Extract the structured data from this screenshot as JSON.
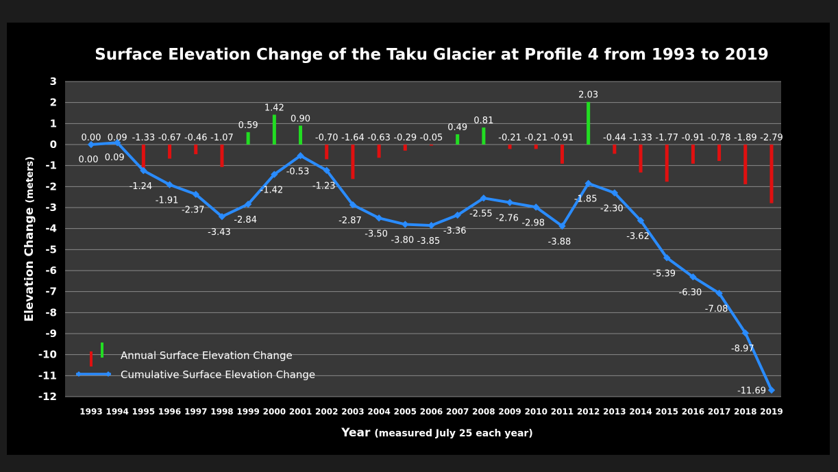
{
  "chart_data": {
    "type": "bar+line",
    "title": "Surface Elevation Change of the Taku Glacier at Profile 4 from 1993 to 2019",
    "xlabel": "Year",
    "xlabel_note": "(measured July 25 each year)",
    "ylabel": "Elevation Change",
    "ylabel_unit": "(meters)",
    "ylim": [
      -12,
      3
    ],
    "yticks": [
      3,
      2,
      1,
      0,
      -1,
      -2,
      -3,
      -4,
      -5,
      -6,
      -7,
      -8,
      -9,
      -10,
      -11,
      -12
    ],
    "grid": true,
    "legend_position": "bottom-left",
    "categories": [
      "1993",
      "1994",
      "1995",
      "1996",
      "1997",
      "1998",
      "1999",
      "2000",
      "2001",
      "2002",
      "2003",
      "2004",
      "2005",
      "2006",
      "2007",
      "2008",
      "2009",
      "2010",
      "2011",
      "2012",
      "2013",
      "2014",
      "2015",
      "2016",
      "2017",
      "2018",
      "2019"
    ],
    "series": [
      {
        "name": "Annual Surface Elevation Change",
        "type": "bar",
        "positive_color": "#22dd22",
        "negative_color": "#e01010",
        "values": [
          0.0,
          0.09,
          -1.33,
          -0.67,
          -0.46,
          -1.07,
          0.59,
          1.42,
          0.9,
          -0.7,
          -1.64,
          -0.63,
          -0.29,
          -0.05,
          0.49,
          0.81,
          -0.21,
          -0.21,
          -0.91,
          2.03,
          -0.44,
          -1.33,
          -1.77,
          -0.91,
          -0.78,
          -1.89,
          -2.79
        ],
        "labels": [
          "0.00",
          "0.09",
          "-1.33",
          "-0.67",
          "-0.46",
          "-1.07",
          "0.59",
          "1.42",
          "0.90",
          "-0.70",
          "-1.64",
          "-0.63",
          "-0.29",
          "-0.05",
          "0.49",
          "0.81",
          "-0.21",
          "-0.21",
          "-0.91",
          "2.03",
          "-0.44",
          "-1.33",
          "-1.77",
          "-0.91",
          "-0.78",
          "-1.89",
          "-2.79"
        ]
      },
      {
        "name": "Cumulative Surface Elevation Change",
        "type": "line",
        "color": "#2a8cff",
        "values": [
          0.0,
          0.09,
          -1.24,
          -1.91,
          -2.37,
          -3.43,
          -2.84,
          -1.42,
          -0.53,
          -1.23,
          -2.87,
          -3.5,
          -3.8,
          -3.85,
          -3.36,
          -2.55,
          -2.76,
          -2.98,
          -3.88,
          -1.85,
          -2.3,
          -3.62,
          -5.39,
          -6.3,
          -7.08,
          -8.97,
          -11.69
        ],
        "labels": [
          "0.00",
          "0.09",
          "-1.24",
          "-1.91",
          "-2.37",
          "-3.43",
          "-2.84",
          "-1.42",
          "-0.53",
          "-1.23",
          "-2.87",
          "-3.50",
          "-3.80",
          "-3.85",
          "-3.36",
          "-2.55",
          "-2.76",
          "-2.98",
          "-3.88",
          "-1.85",
          "-2.30",
          "-3.62",
          "-5.39",
          "-6.30",
          "-7.08",
          "-8.97",
          "-11.69"
        ]
      }
    ],
    "colors": {
      "plot_background": "#383838",
      "outer_background": "#000000",
      "gridline": "#8a8a8a"
    }
  }
}
